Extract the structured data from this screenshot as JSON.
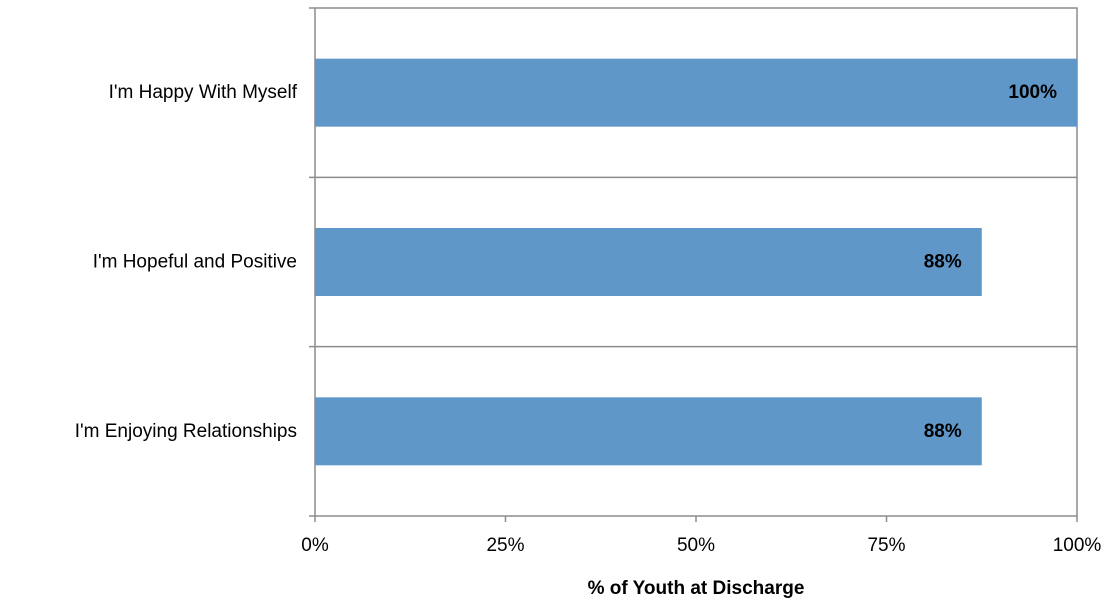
{
  "chart_data": {
    "type": "bar",
    "orientation": "horizontal",
    "title": "",
    "xlabel": "% of Youth at Discharge",
    "ylabel": "",
    "categories": [
      "I'm Happy With Myself",
      "I'm Hopeful and Positive",
      "I'm Enjoying Relationships"
    ],
    "values": [
      100,
      87.5,
      87.5
    ],
    "data_labels": [
      "100%",
      "88%",
      "88%"
    ],
    "xlim": [
      0,
      100
    ],
    "x_ticks": [
      0,
      25,
      50,
      75,
      100
    ],
    "x_tick_labels": [
      "0%",
      "25%",
      "50%",
      "75%",
      "100%"
    ],
    "grid": false,
    "legend": "none",
    "bar_color": "#6097C9"
  }
}
